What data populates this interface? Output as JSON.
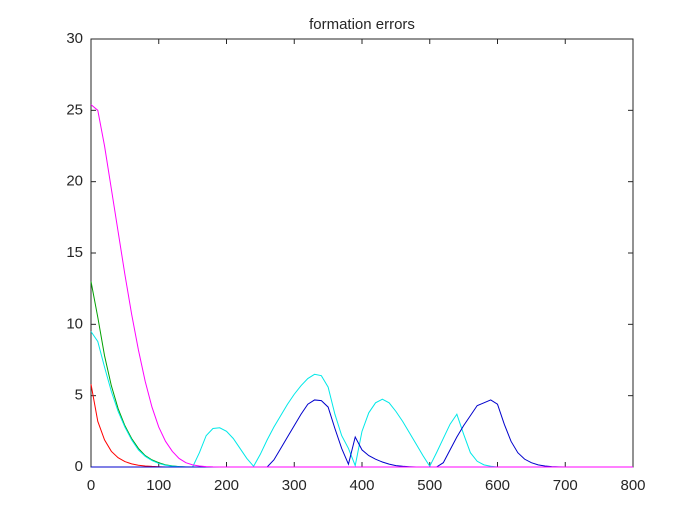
{
  "chart_data": {
    "type": "line",
    "title": "formation errors",
    "x": [
      0,
      10,
      20,
      30,
      40,
      50,
      60,
      70,
      80,
      90,
      100,
      110,
      120,
      130,
      140,
      150,
      160,
      170,
      180,
      190,
      200,
      210,
      220,
      230,
      240,
      250,
      260,
      270,
      280,
      290,
      300,
      310,
      320,
      330,
      340,
      350,
      360,
      370,
      380,
      390,
      400,
      410,
      420,
      430,
      440,
      450,
      460,
      470,
      480,
      490,
      500,
      510,
      520,
      530,
      540,
      550,
      560,
      570,
      580,
      590,
      600,
      610,
      620,
      630,
      640,
      650,
      660,
      670,
      680,
      690,
      700,
      710,
      720,
      730,
      740,
      750,
      760,
      770,
      780,
      790,
      800
    ],
    "series": [
      {
        "color": "#ff0000",
        "values": [
          5.8,
          3.2,
          1.9,
          1.1,
          0.65,
          0.38,
          0.22,
          0.12,
          0.07,
          0.04,
          0.02,
          0,
          0,
          0,
          0,
          0,
          0,
          0,
          0,
          0,
          0,
          0,
          0,
          0,
          0,
          0,
          0,
          0,
          0,
          0,
          0,
          0,
          0,
          0,
          0,
          0,
          0,
          0,
          0,
          0,
          0,
          0,
          0,
          0,
          0,
          0,
          0,
          0,
          0,
          0,
          0,
          0,
          0,
          0,
          0,
          0,
          0,
          0,
          0,
          0,
          0,
          0,
          0,
          0,
          0,
          0,
          0,
          0,
          0,
          0,
          0,
          0,
          0,
          0,
          0,
          0,
          0,
          0,
          0,
          0,
          0
        ]
      },
      {
        "color": "#00a000",
        "values": [
          13,
          10.5,
          7.8,
          5.7,
          4.1,
          2.9,
          2,
          1.3,
          0.8,
          0.5,
          0.3,
          0.15,
          0.08,
          0.03,
          0,
          0,
          0,
          0,
          0,
          0,
          0,
          0,
          0,
          0,
          0,
          0,
          0,
          0,
          0,
          0,
          0,
          0,
          0,
          0,
          0,
          0,
          0,
          0,
          0,
          0,
          0,
          0,
          0,
          0,
          0,
          0,
          0,
          0,
          0,
          0,
          0,
          0,
          0,
          0,
          0,
          0,
          0,
          0,
          0,
          0,
          0,
          0,
          0,
          0,
          0,
          0,
          0,
          0,
          0,
          0,
          0,
          0,
          0,
          0,
          0,
          0,
          0,
          0,
          0,
          0,
          0
        ]
      },
      {
        "color": "#00e8e8",
        "values": [
          9.5,
          8.8,
          7,
          5.3,
          3.9,
          2.8,
          1.9,
          1.2,
          0.75,
          0.45,
          0.25,
          0.12,
          0.06,
          0.03,
          0.01,
          0,
          1.0,
          2.2,
          2.7,
          2.75,
          2.5,
          2.0,
          1.3,
          0.6,
          0.05,
          0.9,
          1.9,
          2.8,
          3.6,
          4.4,
          5.1,
          5.7,
          6.2,
          6.5,
          6.4,
          5.6,
          3.7,
          2.2,
          1.3,
          0.1,
          2.5,
          3.8,
          4.5,
          4.75,
          4.5,
          3.9,
          3.2,
          2.4,
          1.6,
          0.8,
          0.05,
          1.0,
          2.0,
          3.0,
          3.7,
          2.3,
          1.0,
          0.4,
          0.15,
          0.05,
          0,
          0,
          0,
          0,
          0,
          0,
          0,
          0,
          0,
          0,
          0,
          0,
          0,
          0,
          0,
          0,
          0,
          0,
          0,
          0,
          0
        ]
      },
      {
        "color": "#0000cc",
        "values": [
          0,
          0,
          0,
          0,
          0,
          0,
          0,
          0,
          0,
          0,
          0,
          0,
          0,
          0,
          0,
          0,
          0,
          0,
          0,
          0,
          0,
          0,
          0,
          0,
          0,
          0,
          0,
          0.5,
          1.3,
          2.1,
          2.9,
          3.7,
          4.4,
          4.7,
          4.65,
          4.2,
          2.7,
          1.3,
          0.2,
          2.1,
          1.2,
          0.8,
          0.55,
          0.35,
          0.2,
          0.1,
          0.05,
          0.02,
          0,
          0,
          0,
          0,
          0.3,
          1.2,
          2.1,
          2.9,
          3.6,
          4.3,
          4.5,
          4.7,
          4.4,
          3.0,
          1.8,
          1.0,
          0.55,
          0.3,
          0.15,
          0.07,
          0.03,
          0.01,
          0,
          0,
          0,
          0,
          0,
          0,
          0,
          0,
          0,
          0,
          0
        ]
      },
      {
        "color": "#ff00ff",
        "values": [
          25.4,
          25,
          22.5,
          19.5,
          16.5,
          13.5,
          10.7,
          8.2,
          6.0,
          4.2,
          2.8,
          1.8,
          1.1,
          0.6,
          0.3,
          0.15,
          0.07,
          0.03,
          0.01,
          0,
          0,
          0,
          0,
          0,
          0,
          0,
          0,
          0,
          0,
          0,
          0,
          0,
          0,
          0,
          0,
          0,
          0,
          0,
          0,
          0,
          0,
          0,
          0,
          0,
          0,
          0,
          0,
          0,
          0,
          0,
          0,
          0,
          0,
          0,
          0,
          0,
          0,
          0,
          0,
          0,
          0,
          0,
          0,
          0,
          0,
          0,
          0,
          0,
          0,
          0,
          0,
          0,
          0,
          0,
          0,
          0,
          0,
          0,
          0,
          0,
          0
        ]
      }
    ],
    "xlim": [
      0,
      800
    ],
    "xticks": [
      0,
      100,
      200,
      300,
      400,
      500,
      600,
      700,
      800
    ],
    "ylim": [
      0,
      30
    ],
    "yticks": [
      0,
      5,
      10,
      15,
      20,
      25,
      30
    ],
    "grid": false
  }
}
